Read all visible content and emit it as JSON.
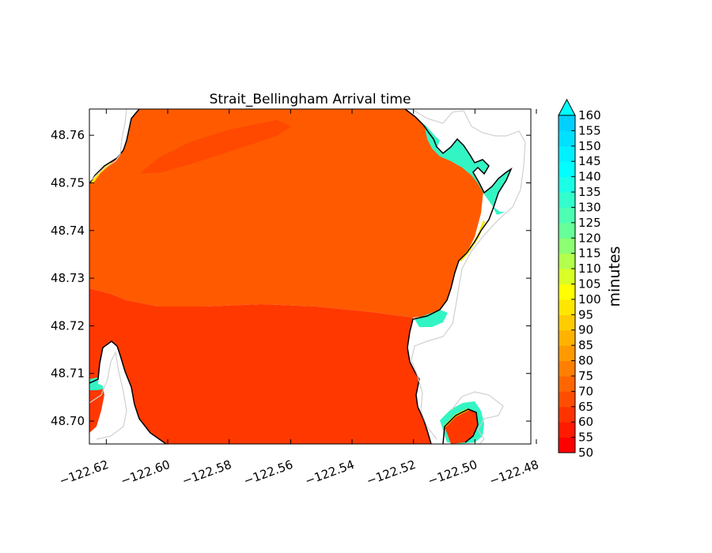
{
  "chart_data": {
    "type": "heatmap",
    "title": "Strait_Bellingham Arrival time",
    "xlabel": "",
    "ylabel": "",
    "xlim": [
      -122.6255,
      -122.4818
    ],
    "ylim": [
      48.6952,
      48.7655
    ],
    "x_ticks": [
      {
        "value": -122.62,
        "label": "−122.62"
      },
      {
        "value": -122.6,
        "label": "−122.60"
      },
      {
        "value": -122.58,
        "label": "−122.58"
      },
      {
        "value": -122.56,
        "label": "−122.56"
      },
      {
        "value": -122.54,
        "label": "−122.54"
      },
      {
        "value": -122.52,
        "label": "−122.52"
      },
      {
        "value": -122.5,
        "label": "−122.50"
      },
      {
        "value": -122.48,
        "label": "−122.48"
      }
    ],
    "y_ticks": [
      {
        "value": 48.7,
        "label": "48.70"
      },
      {
        "value": 48.71,
        "label": "48.71"
      },
      {
        "value": 48.72,
        "label": "48.72"
      },
      {
        "value": 48.73,
        "label": "48.73"
      },
      {
        "value": 48.74,
        "label": "48.74"
      },
      {
        "value": 48.75,
        "label": "48.75"
      },
      {
        "value": 48.76,
        "label": "48.76"
      }
    ],
    "grid": false,
    "colorbar": {
      "label": "minutes",
      "min": 50,
      "max": 160,
      "extend": "max",
      "levels": [
        50,
        55,
        60,
        65,
        70,
        75,
        80,
        85,
        90,
        95,
        100,
        105,
        110,
        115,
        120,
        125,
        130,
        135,
        140,
        145,
        150,
        155,
        160
      ],
      "labels": [
        "50",
        "55",
        "60",
        "65",
        "70",
        "75",
        "80",
        "85",
        "90",
        "95",
        "100",
        "105",
        "110",
        "115",
        "120",
        "125",
        "130",
        "135",
        "140",
        "145",
        "150",
        "155",
        "160"
      ],
      "colors": [
        "#ff0000",
        "#ff1a00",
        "#ff3300",
        "#ff4d00",
        "#ff6600",
        "#ff8000",
        "#ff9900",
        "#ffb300",
        "#ffcc00",
        "#ffe600",
        "#ffff00",
        "#d9ff26",
        "#b3ff4d",
        "#8cff73",
        "#66ff99",
        "#4dffb3",
        "#33ffcc",
        "#1affe6",
        "#00ffff",
        "#00f0ff",
        "#00e0ff",
        "#00d0ff"
      ],
      "extend_color": "#00ffff"
    },
    "fill_colors": {
      "north_water": "#ff5a00",
      "south_water": "#ff3800",
      "channel": "#ff4800",
      "late_arrival": "#33f5c4",
      "yellow_fringe": "#ffe600",
      "coastline": "#000000",
      "topo_contour": "#d0d0d0"
    }
  }
}
